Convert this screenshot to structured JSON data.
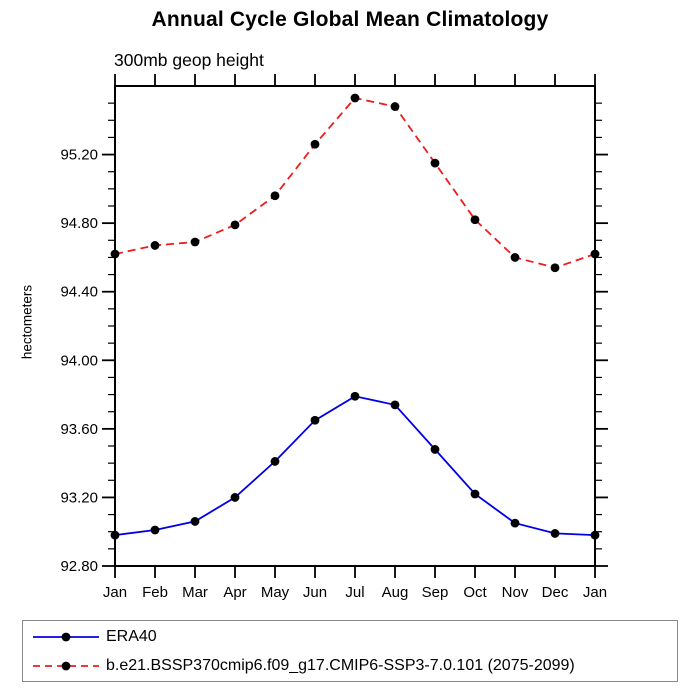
{
  "page": {
    "background": "#ffffff",
    "axis_color": "#000000"
  },
  "chart_data": {
    "type": "line",
    "title": "Annual Cycle Global Mean Climatology",
    "subtitle": "300mb geop height",
    "ylabel": "hectometers",
    "xlabel": "",
    "x_categories": [
      "Jan",
      "Feb",
      "Mar",
      "Apr",
      "May",
      "Jun",
      "Jul",
      "Aug",
      "Sep",
      "Oct",
      "Nov",
      "Dec",
      "Jan"
    ],
    "ylim": [
      92.8,
      95.6
    ],
    "y_major_ticks": [
      92.8,
      93.2,
      93.6,
      94.0,
      94.4,
      94.8,
      95.2
    ],
    "y_tick_labels": [
      "92.80",
      "93.20",
      "93.60",
      "94.00",
      "94.40",
      "94.80",
      "95.20"
    ],
    "y_minor_step": 0.1,
    "grid": false,
    "legend_position": "bottom-left-box",
    "marker": "filled-circle",
    "marker_color": "#000000",
    "series": [
      {
        "name": "ERA40",
        "color": "#0000e6",
        "line_style": "solid",
        "values": [
          92.98,
          93.01,
          93.06,
          93.2,
          93.41,
          93.65,
          93.79,
          93.74,
          93.48,
          93.22,
          93.05,
          92.99,
          92.98
        ]
      },
      {
        "name": "b.e21.BSSP370cmip6.f09_g17.CMIP6-SSP3-7.0.101 (2075-2099)",
        "color": "#ee1c1c",
        "line_style": "dashed",
        "values": [
          94.62,
          94.67,
          94.69,
          94.79,
          94.96,
          95.26,
          95.53,
          95.48,
          95.15,
          94.82,
          94.6,
          94.54,
          94.62
        ]
      }
    ]
  }
}
